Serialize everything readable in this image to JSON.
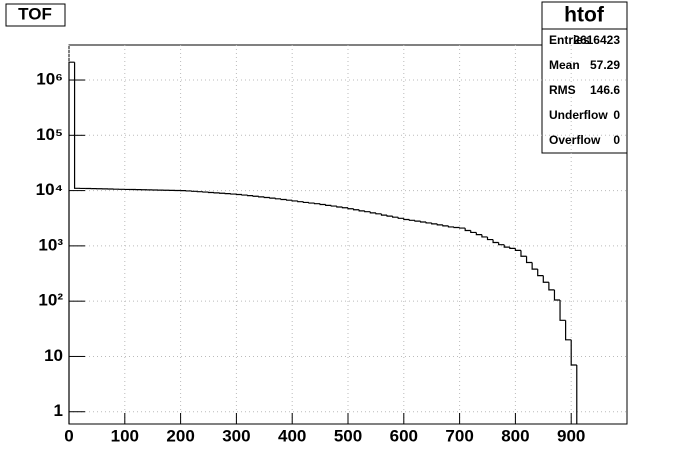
{
  "chart_data": {
    "type": "histogram",
    "title": "TOF",
    "bins": [
      0,
      10,
      20,
      30,
      40,
      50,
      60,
      70,
      80,
      90,
      100,
      110,
      120,
      130,
      140,
      150,
      160,
      170,
      180,
      190,
      200,
      210,
      220,
      230,
      240,
      250,
      260,
      270,
      280,
      290,
      300,
      310,
      320,
      330,
      340,
      350,
      360,
      370,
      380,
      390,
      400,
      410,
      420,
      430,
      440,
      450,
      460,
      470,
      480,
      490,
      500,
      510,
      520,
      530,
      540,
      550,
      560,
      570,
      580,
      590,
      600,
      610,
      620,
      630,
      640,
      650,
      660,
      670,
      680,
      690,
      700,
      710,
      720,
      730,
      740,
      750,
      760,
      770,
      780,
      790,
      800,
      810,
      820,
      830,
      840,
      850,
      860,
      870,
      880,
      890,
      900,
      910
    ],
    "values": [
      2100000,
      11000,
      10950,
      10900,
      10850,
      10800,
      10750,
      10700,
      10600,
      10550,
      10500,
      10450,
      10400,
      10350,
      10300,
      10250,
      10200,
      10150,
      10100,
      10050,
      10000,
      9850,
      9700,
      9550,
      9400,
      9250,
      9100,
      8950,
      8800,
      8650,
      8500,
      8300,
      8100,
      7900,
      7700,
      7500,
      7300,
      7100,
      6900,
      6700,
      6500,
      6300,
      6100,
      5950,
      5800,
      5600,
      5400,
      5250,
      5050,
      4900,
      4700,
      4500,
      4300,
      4150,
      3950,
      3800,
      3600,
      3450,
      3300,
      3150,
      3000,
      2900,
      2800,
      2700,
      2600,
      2500,
      2400,
      2300,
      2200,
      2150,
      2100,
      1900,
      1750,
      1600,
      1450,
      1300,
      1150,
      1050,
      950,
      900,
      830,
      650,
      500,
      380,
      290,
      220,
      160,
      105,
      45,
      20,
      7
    ],
    "color": "#000000",
    "xlim": [
      0,
      1000
    ],
    "xticks": [
      0,
      100,
      200,
      300,
      400,
      500,
      600,
      700,
      800,
      900
    ],
    "ylim": [
      0.6,
      4300000
    ],
    "log_y": true,
    "yticks": [
      1,
      10,
      {
        "value": 100,
        "label": "10²"
      },
      {
        "value": 1000,
        "label": "10³"
      },
      {
        "value": 10000,
        "label": "10⁴"
      },
      {
        "value": 100000,
        "label": "10⁵"
      },
      {
        "value": 1000000,
        "label": "10⁶"
      }
    ],
    "grid": true,
    "stats": {
      "title": "htof",
      "rows": [
        [
          "Entries",
          2616423
        ],
        [
          "Mean",
          57.29
        ],
        [
          "RMS",
          146.6
        ],
        [
          "Underflow",
          0
        ],
        [
          "Overflow",
          0
        ]
      ]
    }
  }
}
